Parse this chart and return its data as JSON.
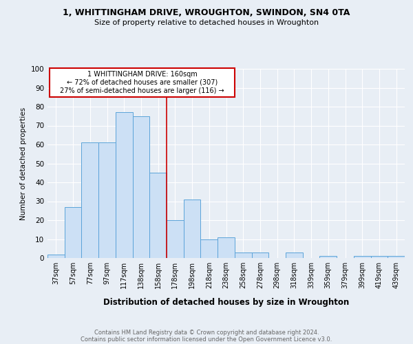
{
  "title1": "1, WHITTINGHAM DRIVE, WROUGHTON, SWINDON, SN4 0TA",
  "title2": "Size of property relative to detached houses in Wroughton",
  "xlabel": "Distribution of detached houses by size in Wroughton",
  "ylabel": "Number of detached properties",
  "categories": [
    "37sqm",
    "57sqm",
    "77sqm",
    "97sqm",
    "117sqm",
    "138sqm",
    "158sqm",
    "178sqm",
    "198sqm",
    "218sqm",
    "238sqm",
    "258sqm",
    "278sqm",
    "298sqm",
    "318sqm",
    "339sqm",
    "359sqm",
    "379sqm",
    "399sqm",
    "419sqm",
    "439sqm"
  ],
  "values": [
    2,
    27,
    61,
    61,
    77,
    75,
    45,
    20,
    31,
    10,
    11,
    3,
    3,
    0,
    3,
    0,
    1,
    0,
    1,
    1,
    1
  ],
  "bar_color": "#cce0f5",
  "bar_edge_color": "#5ba3d9",
  "vline_x": 6.5,
  "vline_color": "#cc0000",
  "annotation_line1": "1 WHITTINGHAM DRIVE: 160sqm",
  "annotation_line2": "← 72% of detached houses are smaller (307)",
  "annotation_line3": "27% of semi-detached houses are larger (116) →",
  "annotation_box_color": "#cc0000",
  "footer1": "Contains HM Land Registry data © Crown copyright and database right 2024.",
  "footer2": "Contains public sector information licensed under the Open Government Licence v3.0.",
  "ylim": [
    0,
    100
  ],
  "background_color": "#e8eef5"
}
